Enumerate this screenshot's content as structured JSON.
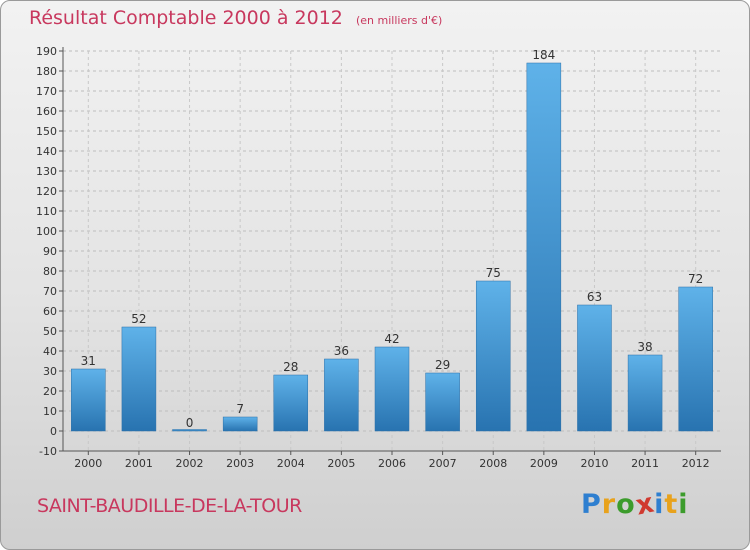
{
  "title": "Résultat Comptable 2000 à 2012",
  "subtitle": "(en milliers d'€)",
  "commune": "SAINT-BAUDILLE-DE-LA-TOUR",
  "logo": {
    "letters": [
      "P",
      "r",
      "o",
      "x",
      "i",
      "t",
      "i"
    ],
    "colors": [
      "#2e7fd0",
      "#e8a21c",
      "#3c9c2c",
      "#d03a30",
      "#2e7fd0",
      "#e8a21c",
      "#3c9c2c"
    ]
  },
  "colors": {
    "accent": "#c8385e",
    "bar_light": "#5aaee6",
    "bar_dark": "#2a78b6"
  },
  "chart_data": {
    "type": "bar",
    "categories": [
      "2000",
      "2001",
      "2002",
      "2003",
      "2004",
      "2005",
      "2006",
      "2007",
      "2008",
      "2009",
      "2010",
      "2011",
      "2012"
    ],
    "values": [
      31,
      52,
      0,
      7,
      28,
      36,
      42,
      29,
      75,
      184,
      63,
      38,
      72
    ],
    "ylim": [
      -10,
      190
    ],
    "yticks": [
      -10,
      0,
      10,
      20,
      30,
      40,
      50,
      60,
      70,
      80,
      90,
      100,
      110,
      120,
      130,
      140,
      150,
      160,
      170,
      180,
      190
    ],
    "grid": true,
    "title": "Résultat Comptable 2000 à 2012",
    "xlabel": "",
    "ylabel": ""
  }
}
